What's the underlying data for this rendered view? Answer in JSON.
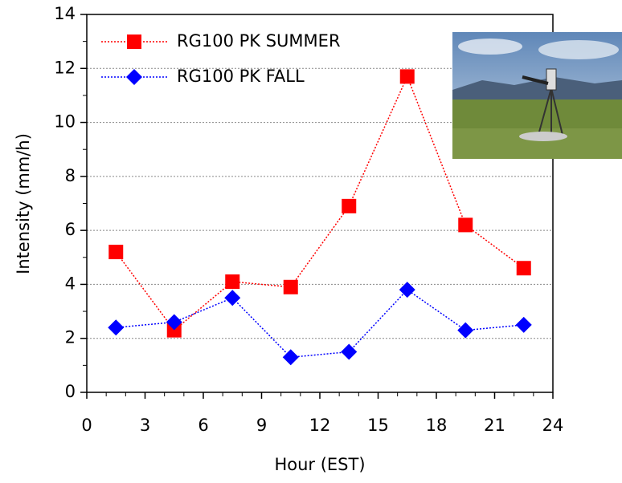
{
  "chart_data": {
    "type": "line",
    "x_label": "Hour (EST)",
    "y_label": "Intensity (mm/h)",
    "x": [
      1.5,
      4.5,
      7.5,
      10.5,
      13.5,
      16.5,
      19.5,
      22.5
    ],
    "series": [
      {
        "name": "RG100 PK SUMMER",
        "color": "#ff0000",
        "marker": "square",
        "values": [
          5.2,
          2.3,
          4.1,
          3.9,
          6.9,
          11.7,
          6.2,
          4.6
        ]
      },
      {
        "name": "RG100 PK FALL",
        "color": "#0000ff",
        "marker": "diamond",
        "values": [
          2.4,
          2.6,
          3.5,
          1.3,
          1.5,
          3.8,
          2.3,
          2.5
        ]
      }
    ],
    "xlim": [
      0,
      24
    ],
    "xticks": [
      0,
      3,
      6,
      9,
      12,
      15,
      18,
      21,
      24
    ],
    "ylim": [
      0,
      14
    ],
    "yticks": [
      0,
      2,
      4,
      6,
      8,
      10,
      12,
      14
    ],
    "grid": true,
    "legend": "upper left"
  }
}
